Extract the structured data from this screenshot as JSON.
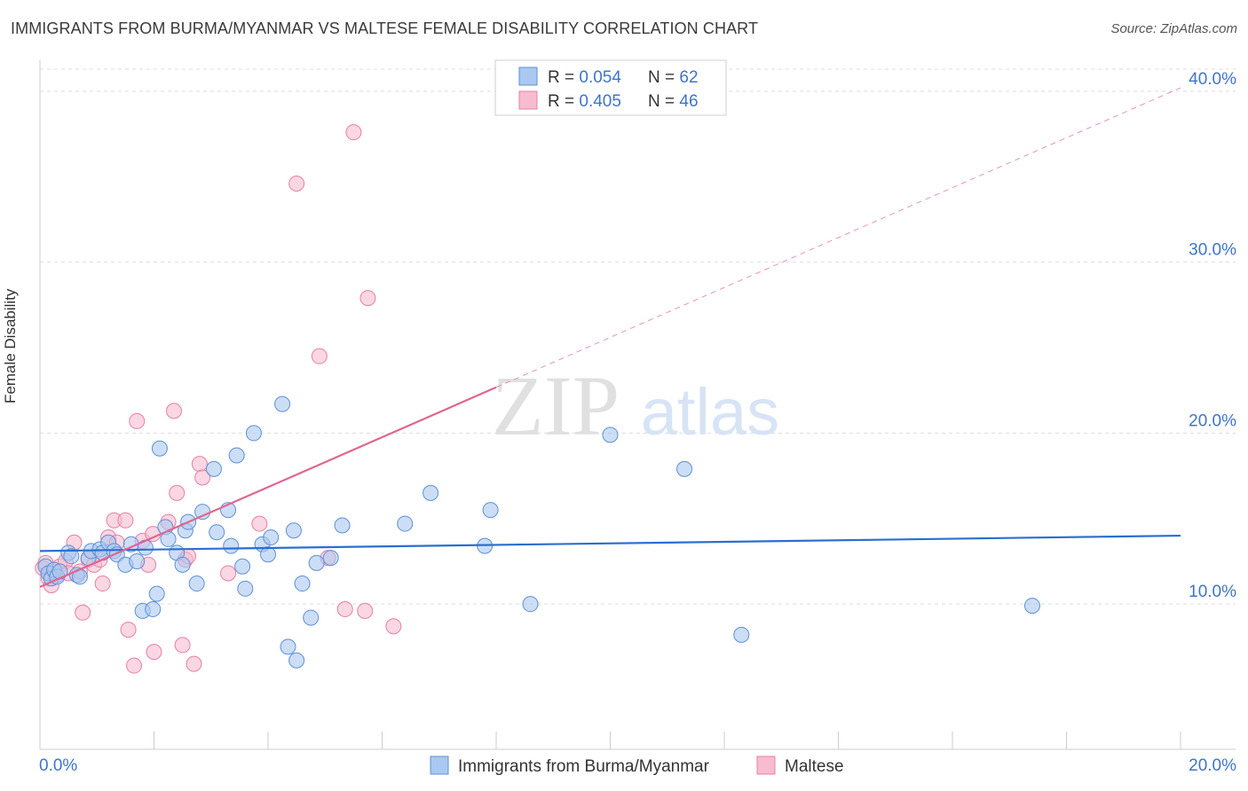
{
  "title": "IMMIGRANTS FROM BURMA/MYANMAR VS MALTESE FEMALE DISABILITY CORRELATION CHART",
  "source": "Source: ZipAtlas.com",
  "watermark": {
    "zip": "ZIP",
    "atlas": "atlas"
  },
  "legend": {
    "rows": [
      {
        "r_label": "R = ",
        "r_value": "0.054",
        "n_label": "N = ",
        "n_value": "62"
      },
      {
        "r_label": "R = ",
        "r_value": "0.405",
        "n_label": "N = ",
        "n_value": "46"
      }
    ]
  },
  "colors": {
    "blue_fill": "#aac8f0",
    "blue_stroke": "#5e90d6",
    "blue_line": "#2a6fd0",
    "pink_fill": "#f7bcd0",
    "pink_stroke": "#e87fa4",
    "pink_line": "#e0658f",
    "axis_text": "#3f74c8",
    "grid": "#dddddd"
  },
  "chart_data": {
    "type": "scatter",
    "title": "IMMIGRANTS FROM BURMA/MYANMAR VS MALTESE FEMALE DISABILITY CORRELATION CHART",
    "xlabel": "",
    "ylabel": "Female Disability",
    "xlim": [
      0,
      20
    ],
    "ylim": [
      1.5,
      41.5
    ],
    "x_tick_labels": [
      "0.0%",
      "20.0%"
    ],
    "y_ticks": [
      10,
      20,
      30,
      40
    ],
    "y_tick_labels": [
      "10.0%",
      "20.0%",
      "30.0%",
      "40.0%"
    ],
    "grid": true,
    "legend_position": "bottom",
    "series": [
      {
        "name": "Immigrants from Burma/Myanmar",
        "color": "blue",
        "R": 0.054,
        "N": 62,
        "trend": {
          "x0": 0,
          "y0": 13.1,
          "x1": 20,
          "y1": 14.0,
          "dashed_from": null
        },
        "points": [
          [
            0.1,
            12.2
          ],
          [
            0.15,
            11.8
          ],
          [
            0.2,
            11.5
          ],
          [
            0.25,
            12.0
          ],
          [
            0.3,
            11.6
          ],
          [
            0.35,
            11.9
          ],
          [
            0.5,
            13.0
          ],
          [
            0.55,
            12.8
          ],
          [
            0.65,
            11.7
          ],
          [
            0.7,
            11.6
          ],
          [
            0.85,
            12.7
          ],
          [
            0.9,
            13.1
          ],
          [
            1.05,
            13.2
          ],
          [
            1.1,
            13.0
          ],
          [
            1.2,
            13.6
          ],
          [
            1.3,
            13.1
          ],
          [
            1.35,
            12.9
          ],
          [
            1.5,
            12.3
          ],
          [
            1.6,
            13.5
          ],
          [
            1.7,
            12.5
          ],
          [
            1.85,
            13.3
          ],
          [
            1.8,
            9.6
          ],
          [
            1.98,
            9.7
          ],
          [
            2.05,
            10.6
          ],
          [
            2.1,
            19.1
          ],
          [
            2.2,
            14.5
          ],
          [
            2.25,
            13.8
          ],
          [
            2.4,
            13.0
          ],
          [
            2.5,
            12.3
          ],
          [
            2.55,
            14.3
          ],
          [
            2.6,
            14.8
          ],
          [
            2.75,
            11.2
          ],
          [
            2.85,
            15.4
          ],
          [
            3.05,
            17.9
          ],
          [
            3.1,
            14.2
          ],
          [
            3.3,
            15.5
          ],
          [
            3.35,
            13.4
          ],
          [
            3.45,
            18.7
          ],
          [
            3.55,
            12.2
          ],
          [
            3.6,
            10.9
          ],
          [
            3.75,
            20.0
          ],
          [
            3.9,
            13.5
          ],
          [
            4.0,
            12.9
          ],
          [
            4.05,
            13.9
          ],
          [
            4.25,
            21.7
          ],
          [
            4.35,
            7.5
          ],
          [
            4.45,
            14.3
          ],
          [
            4.5,
            6.7
          ],
          [
            4.6,
            11.2
          ],
          [
            4.75,
            9.2
          ],
          [
            4.85,
            12.4
          ],
          [
            5.1,
            12.7
          ],
          [
            5.3,
            14.6
          ],
          [
            6.4,
            14.7
          ],
          [
            6.85,
            16.5
          ],
          [
            7.8,
            13.4
          ],
          [
            7.9,
            15.5
          ],
          [
            8.6,
            10.0
          ],
          [
            10.0,
            19.9
          ],
          [
            11.3,
            17.9
          ],
          [
            12.3,
            8.2
          ],
          [
            17.4,
            9.9
          ]
        ]
      },
      {
        "name": "Maltese",
        "color": "pink",
        "R": 0.405,
        "N": 46,
        "trend": {
          "x0": 0,
          "y0": 11.0,
          "x1": 20,
          "y1": 40.2,
          "dashed_from": 8.0
        },
        "points": [
          [
            0.05,
            12.1
          ],
          [
            0.1,
            12.4
          ],
          [
            0.15,
            11.5
          ],
          [
            0.2,
            11.1
          ],
          [
            0.25,
            11.9
          ],
          [
            0.3,
            11.7
          ],
          [
            0.35,
            12.2
          ],
          [
            0.45,
            12.5
          ],
          [
            0.5,
            11.8
          ],
          [
            0.6,
            13.6
          ],
          [
            0.7,
            11.9
          ],
          [
            0.75,
            9.5
          ],
          [
            0.85,
            12.6
          ],
          [
            0.95,
            12.3
          ],
          [
            1.05,
            12.6
          ],
          [
            1.1,
            11.2
          ],
          [
            1.2,
            13.9
          ],
          [
            1.3,
            14.9
          ],
          [
            1.35,
            13.6
          ],
          [
            1.5,
            14.9
          ],
          [
            1.55,
            8.5
          ],
          [
            1.65,
            6.4
          ],
          [
            1.7,
            20.7
          ],
          [
            1.8,
            13.7
          ],
          [
            1.9,
            12.3
          ],
          [
            1.98,
            14.1
          ],
          [
            2.0,
            7.2
          ],
          [
            2.25,
            14.8
          ],
          [
            2.35,
            21.3
          ],
          [
            2.4,
            16.5
          ],
          [
            2.5,
            7.6
          ],
          [
            2.55,
            12.6
          ],
          [
            2.6,
            12.8
          ],
          [
            2.7,
            6.5
          ],
          [
            2.8,
            18.2
          ],
          [
            2.85,
            17.4
          ],
          [
            3.3,
            11.8
          ],
          [
            3.85,
            14.7
          ],
          [
            4.5,
            34.6
          ],
          [
            4.9,
            24.5
          ],
          [
            5.05,
            12.7
          ],
          [
            5.35,
            9.7
          ],
          [
            5.5,
            37.6
          ],
          [
            5.7,
            9.6
          ],
          [
            5.75,
            27.9
          ],
          [
            6.2,
            8.7
          ]
        ]
      }
    ]
  }
}
